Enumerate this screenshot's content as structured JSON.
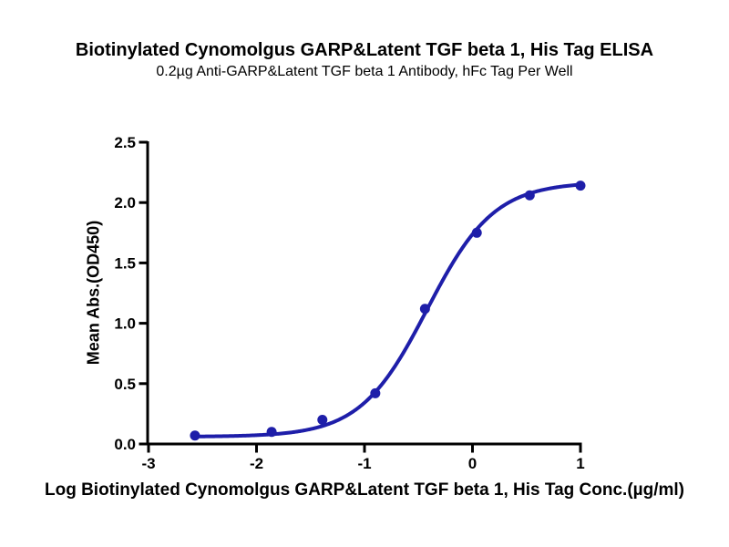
{
  "chart_data": {
    "type": "scatter",
    "title": "Biotinylated Cynomolgus GARP&Latent TGF beta 1, His Tag ELISA",
    "subtitle": "0.2µg Anti-GARP&Latent TGF beta 1 Antibody, hFc Tag Per Well",
    "xlabel": "Log Biotinylated Cynomolgus GARP&Latent TGF beta 1, His Tag Conc.(µg/ml)",
    "ylabel": "Mean Abs.(OD450)",
    "x": [
      -2.57,
      -1.86,
      -1.39,
      -0.9,
      -0.44,
      0.04,
      0.53,
      1.0
    ],
    "y": [
      0.07,
      0.1,
      0.2,
      0.42,
      1.12,
      1.75,
      2.06,
      2.14
    ],
    "x_ticks": [
      -3,
      -2,
      -1,
      0,
      1
    ],
    "x_tick_labels": [
      "-3",
      "-2",
      "-1",
      "0",
      "1"
    ],
    "y_ticks": [
      0,
      0.5,
      1,
      1.5,
      2,
      2.5
    ],
    "y_tick_labels": [
      "0.0",
      "0.5",
      "1.0",
      "1.5",
      "2.0",
      "2.5"
    ],
    "xlim": [
      -3,
      1.01
    ],
    "ylim": [
      0,
      2.5
    ],
    "grid": false,
    "legend": "none",
    "curve_fit": {
      "model": "4PL",
      "bottom": 0.06,
      "top": 2.17,
      "log_ec50": -0.42,
      "hill": 1.4,
      "x_start": -2.57,
      "x_end": 1.0
    },
    "colors": {
      "curve": "#1E1EA9",
      "marker": "#1E1EA9",
      "axis": "#000000",
      "text": "#000000"
    }
  }
}
